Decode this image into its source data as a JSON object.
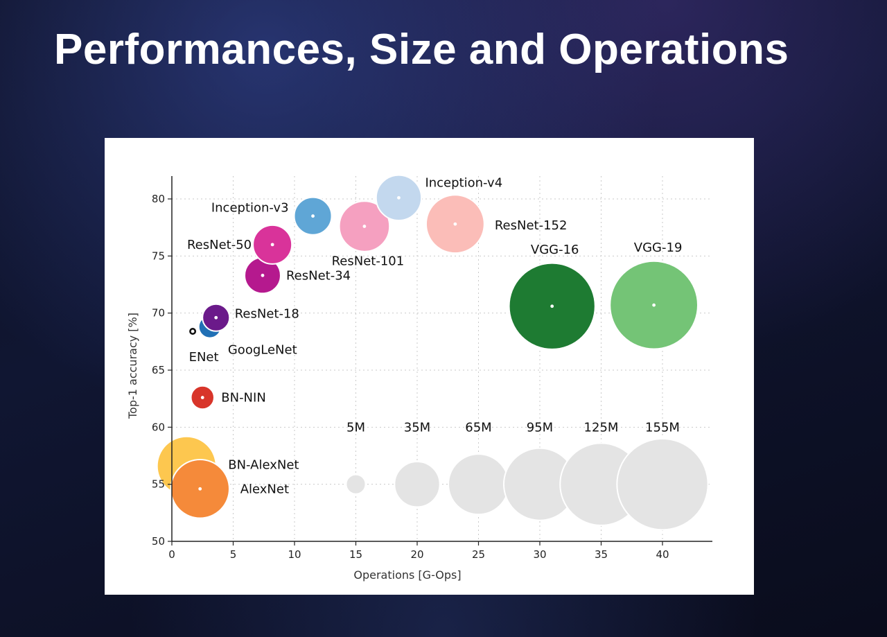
{
  "slide": {
    "title": "Performances, Size and Operations"
  },
  "chart_data": {
    "type": "scatter",
    "subtype": "bubble",
    "title": "",
    "xlabel": "Operations [G-Ops]",
    "ylabel": "Top-1 accuracy [%]",
    "xlim": [
      0,
      44
    ],
    "ylim": [
      50,
      82
    ],
    "xticks": [
      0,
      5,
      10,
      15,
      20,
      25,
      30,
      35,
      40
    ],
    "yticks": [
      50,
      55,
      60,
      65,
      70,
      75,
      80
    ],
    "grid": true,
    "size_unit": "parameters",
    "points": [
      {
        "name": "BN-AlexNet",
        "x": 1.2,
        "y": 56.6,
        "params_m": 62,
        "color": "#fdc74f"
      },
      {
        "name": "AlexNet",
        "x": 2.3,
        "y": 54.6,
        "params_m": 61,
        "color": "#f58a3a"
      },
      {
        "name": "BN-NIN",
        "x": 2.5,
        "y": 62.6,
        "params_m": 7.6,
        "color": "#d8352a"
      },
      {
        "name": "ENet",
        "x": 1.7,
        "y": 68.4,
        "params_m": 0.4,
        "color": "#111111"
      },
      {
        "name": "GoogLeNet",
        "x": 3.1,
        "y": 68.8,
        "params_m": 7,
        "color": "#2170b5"
      },
      {
        "name": "ResNet-18",
        "x": 3.6,
        "y": 69.6,
        "params_m": 11,
        "color": "#6b1a8a"
      },
      {
        "name": "ResNet-34",
        "x": 7.4,
        "y": 73.3,
        "params_m": 21,
        "color": "#b5198e"
      },
      {
        "name": "ResNet-50",
        "x": 8.2,
        "y": 76.0,
        "params_m": 25,
        "color": "#d9339a"
      },
      {
        "name": "Inception-v3",
        "x": 11.5,
        "y": 78.5,
        "params_m": 23,
        "color": "#5fa6d6"
      },
      {
        "name": "ResNet-101",
        "x": 15.7,
        "y": 77.6,
        "params_m": 44,
        "color": "#f5a0c0"
      },
      {
        "name": "Inception-v4",
        "x": 18.5,
        "y": 80.1,
        "params_m": 35,
        "color": "#c3d8ee"
      },
      {
        "name": "ResNet-152",
        "x": 23.1,
        "y": 77.8,
        "params_m": 60,
        "color": "#fbbdb8"
      },
      {
        "name": "VGG-16",
        "x": 31.0,
        "y": 70.6,
        "params_m": 138,
        "color": "#1e7b32"
      },
      {
        "name": "VGG-19",
        "x": 39.3,
        "y": 70.7,
        "params_m": 144,
        "color": "#74c476"
      }
    ],
    "size_legend": [
      {
        "label": "5M",
        "x": 15,
        "y": 55,
        "params_m": 5
      },
      {
        "label": "35M",
        "x": 20,
        "y": 55,
        "params_m": 35
      },
      {
        "label": "65M",
        "x": 25,
        "y": 55,
        "params_m": 65
      },
      {
        "label": "95M",
        "x": 30,
        "y": 55,
        "params_m": 95
      },
      {
        "label": "125M",
        "x": 35,
        "y": 55,
        "params_m": 125
      },
      {
        "label": "155M",
        "x": 40,
        "y": 55,
        "params_m": 155
      }
    ],
    "legend_color": "#e4e4e4"
  }
}
